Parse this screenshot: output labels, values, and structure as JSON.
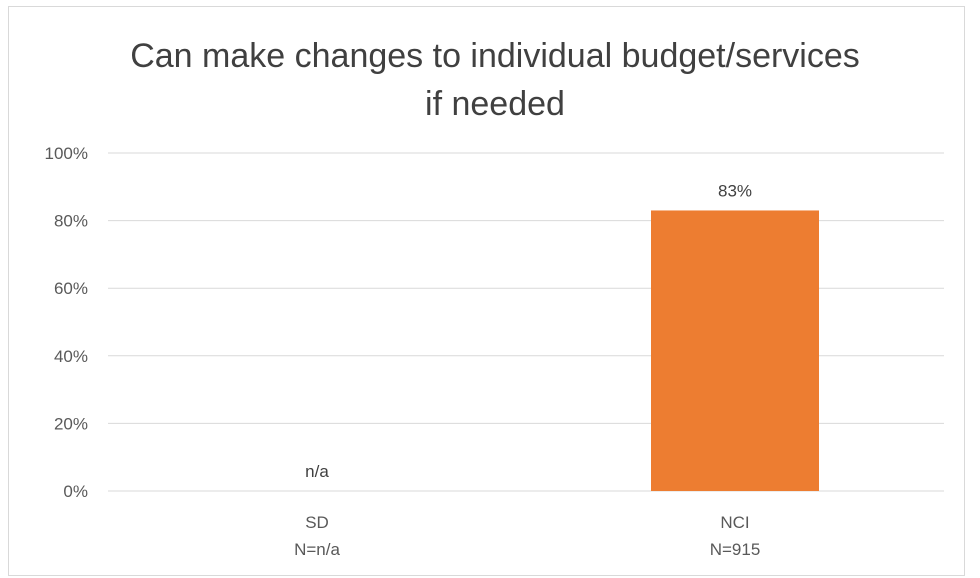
{
  "chart_data": {
    "type": "bar",
    "title_lines": [
      "Can make changes to individual budget/services",
      "if needed"
    ],
    "categories": [
      {
        "label": "SD",
        "sublabel": "N=n/a"
      },
      {
        "label": "NCI",
        "sublabel": "N=915"
      }
    ],
    "values": [
      null,
      83
    ],
    "data_labels": [
      "n/a",
      "83%"
    ],
    "y_ticks": [
      "0%",
      "20%",
      "40%",
      "60%",
      "80%",
      "100%"
    ],
    "ylim": [
      0,
      100
    ],
    "grid": true,
    "bar_color": "#ED7D31",
    "gridline_color": "#d9d9d9"
  }
}
